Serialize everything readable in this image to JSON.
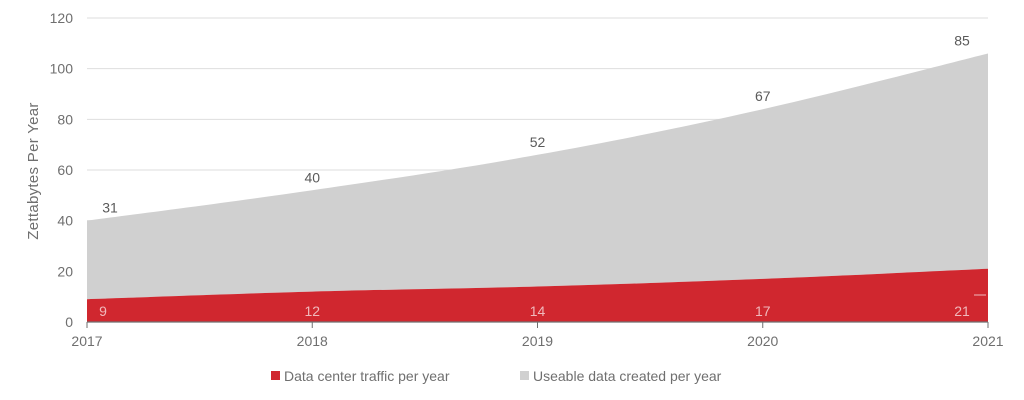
{
  "chart_data": {
    "type": "area",
    "stacked": true,
    "x": [
      "2017",
      "2018",
      "2019",
      "2020",
      "2021"
    ],
    "ylabel": "Zettabytes Per Year",
    "ylim": [
      0,
      120
    ],
    "yticks": [
      "0",
      "20",
      "40",
      "60",
      "80",
      "100",
      "120"
    ],
    "grid": true,
    "legend_position": "bottom-center",
    "series": [
      {
        "name": "Data center traffic per year",
        "values": [
          9,
          12,
          14,
          17,
          21
        ],
        "labels": [
          "9",
          "12",
          "14",
          "17",
          "21"
        ],
        "color": "#d0272f",
        "label_color": "#f0b9bc"
      },
      {
        "name": "Useable data created per year",
        "values": [
          31,
          40,
          52,
          67,
          85
        ],
        "labels": [
          "31",
          "40",
          "52",
          "67",
          "85"
        ],
        "color": "#d0d0d0",
        "label_color": "#5a5a5a"
      }
    ],
    "colors": {
      "grid": "#dedede",
      "axis": "#6f6f6f",
      "text": "#6f6f6f"
    }
  }
}
